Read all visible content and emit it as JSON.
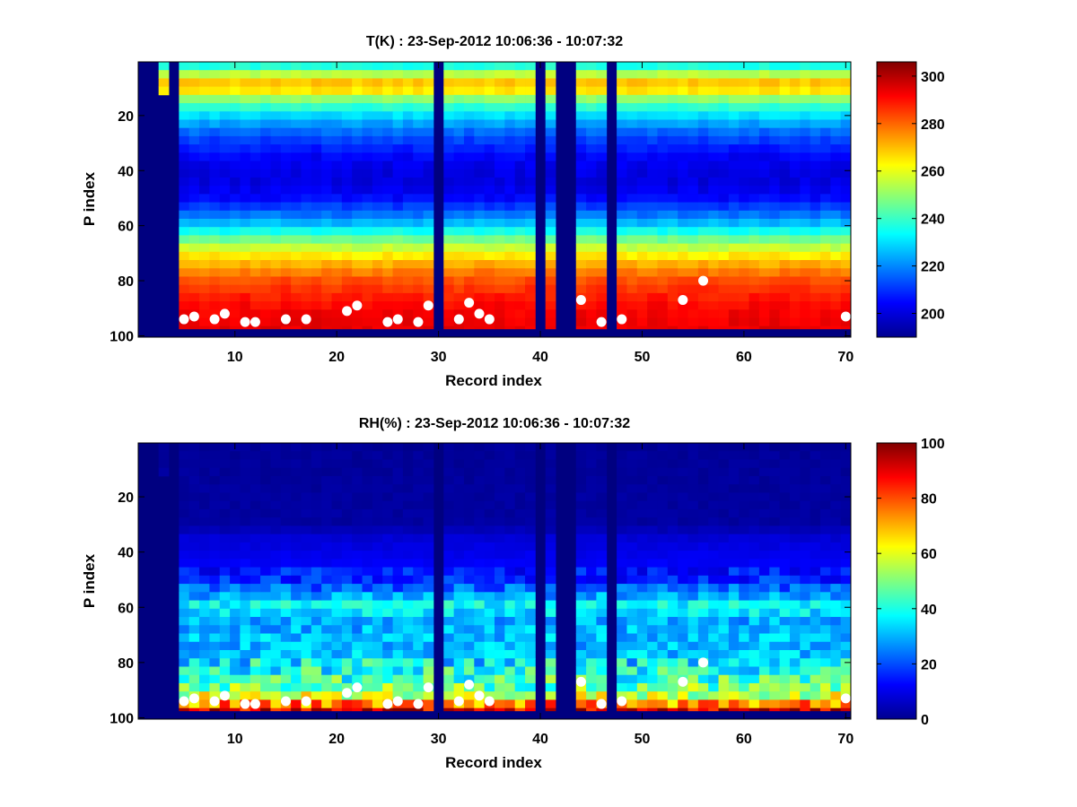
{
  "chart_data": [
    {
      "type": "heatmap",
      "title": "T(K) : 23-Sep-2012 10:06:36 - 10:07:32",
      "xlabel": "Record index",
      "ylabel": "P index",
      "xlim": [
        0.5,
        70.5
      ],
      "ylim": [
        0.5,
        100.5
      ],
      "y_reversed": true,
      "xticks": [
        10,
        20,
        30,
        40,
        50,
        60,
        70
      ],
      "yticks": [
        20,
        40,
        60,
        80,
        100
      ],
      "colormap": "jet",
      "clim": [
        190,
        306
      ],
      "colorbar_ticks": [
        200,
        220,
        240,
        260,
        280,
        300
      ],
      "profile_p_index": [
        1,
        3,
        6,
        9,
        12,
        15,
        20,
        25,
        30,
        35,
        40,
        45,
        50,
        55,
        60,
        65,
        70,
        75,
        80,
        85,
        90,
        97
      ],
      "mean_profile_T": [
        226,
        248,
        258,
        274,
        260,
        244,
        230,
        218,
        210,
        204,
        201,
        201,
        205,
        215,
        228,
        246,
        262,
        274,
        283,
        288,
        292,
        294
      ],
      "fill_value": 190,
      "missing_records": [
        1,
        2,
        4,
        30,
        40,
        42,
        43,
        47
      ],
      "partial_record": {
        "record": 3,
        "valid_from_p": 1,
        "valid_to_p": 12
      },
      "bottom_p_index": 97,
      "surface_markers": [
        [
          5,
          94
        ],
        [
          6,
          93
        ],
        [
          8,
          94
        ],
        [
          9,
          92
        ],
        [
          11,
          95
        ],
        [
          12,
          95
        ],
        [
          15,
          94
        ],
        [
          17,
          94
        ],
        [
          21,
          91
        ],
        [
          22,
          89
        ],
        [
          25,
          95
        ],
        [
          26,
          94
        ],
        [
          28,
          95
        ],
        [
          29,
          89
        ],
        [
          32,
          94
        ],
        [
          33,
          88
        ],
        [
          34,
          92
        ],
        [
          35,
          94
        ],
        [
          44,
          87
        ],
        [
          46,
          95
        ],
        [
          48,
          94
        ],
        [
          54,
          87
        ],
        [
          56,
          80
        ],
        [
          70,
          93
        ]
      ]
    },
    {
      "type": "heatmap",
      "title": "RH(%) : 23-Sep-2012 10:06:36 - 10:07:32",
      "xlabel": "Record index",
      "ylabel": "P index",
      "xlim": [
        0.5,
        70.5
      ],
      "ylim": [
        0.5,
        100.5
      ],
      "y_reversed": true,
      "xticks": [
        10,
        20,
        30,
        40,
        50,
        60,
        70
      ],
      "yticks": [
        20,
        40,
        60,
        80,
        100
      ],
      "colormap": "jet",
      "clim": [
        0,
        100
      ],
      "colorbar_ticks": [
        0,
        20,
        40,
        60,
        80,
        100
      ],
      "profile_p_index": [
        1,
        30,
        35,
        50,
        55,
        60,
        63,
        66,
        70,
        75,
        80,
        85,
        90,
        94,
        97
      ],
      "mean_profile_RH": [
        2,
        3,
        8,
        14,
        24,
        38,
        30,
        26,
        30,
        28,
        32,
        38,
        46,
        62,
        88
      ],
      "fill_value": 0,
      "missing_records": [
        1,
        2,
        4,
        30,
        40,
        42,
        43,
        47
      ],
      "partial_record": {
        "record": 3,
        "valid_from_p": 1,
        "valid_to_p": 12
      },
      "bottom_p_index": 97,
      "surface_markers": [
        [
          5,
          94
        ],
        [
          6,
          93
        ],
        [
          8,
          94
        ],
        [
          9,
          92
        ],
        [
          11,
          95
        ],
        [
          12,
          95
        ],
        [
          15,
          94
        ],
        [
          17,
          94
        ],
        [
          21,
          91
        ],
        [
          22,
          89
        ],
        [
          25,
          95
        ],
        [
          26,
          94
        ],
        [
          28,
          95
        ],
        [
          29,
          89
        ],
        [
          32,
          94
        ],
        [
          33,
          88
        ],
        [
          34,
          92
        ],
        [
          35,
          94
        ],
        [
          44,
          87
        ],
        [
          46,
          95
        ],
        [
          48,
          94
        ],
        [
          54,
          87
        ],
        [
          56,
          80
        ],
        [
          70,
          93
        ]
      ]
    }
  ]
}
